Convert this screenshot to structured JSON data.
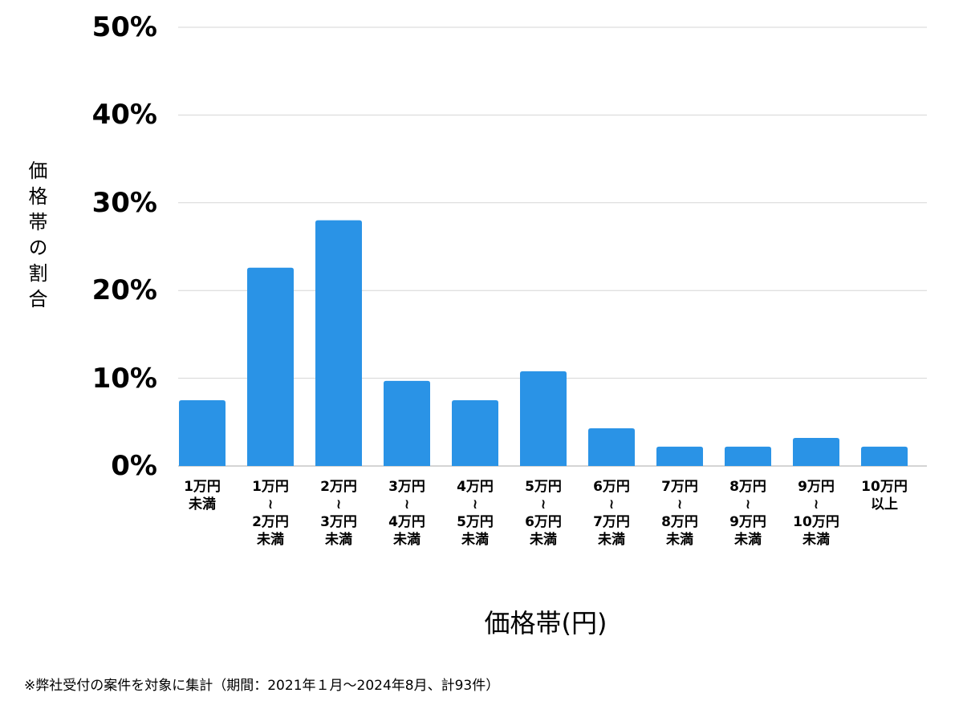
{
  "chart_data": {
    "type": "bar",
    "y_label": "価格帯の割合",
    "x_label": "価格帯(円)",
    "footnote": "※弊社受付の案件を対象に集計（期間：2021年１月〜2024年8月、計93件）",
    "categories": [
      "1万円\n未満",
      "1万円\n≀\n2万円\n未満",
      "2万円\n≀\n3万円\n未満",
      "3万円\n≀\n4万円\n未満",
      "4万円\n≀\n5万円\n未満",
      "5万円\n≀\n6万円\n未満",
      "6万円\n≀\n7万円\n未満",
      "7万円\n≀\n8万円\n未満",
      "8万円\n≀\n9万円\n未満",
      "9万円\n≀\n10万円\n未満",
      "10万円\n以上"
    ],
    "values": [
      7.5,
      22.6,
      28.0,
      9.7,
      7.5,
      10.8,
      4.3,
      2.2,
      2.2,
      3.2,
      2.2
    ],
    "color": "#2a93e6",
    "ylim": [
      0,
      50
    ],
    "yticks": [
      {
        "value": 0,
        "label": "0%"
      },
      {
        "value": 10,
        "label": "10%"
      },
      {
        "value": 20,
        "label": "20%"
      },
      {
        "value": 30,
        "label": "30%"
      },
      {
        "value": 40,
        "label": "40%"
      },
      {
        "value": 50,
        "label": "50%"
      }
    ],
    "grid": true
  }
}
